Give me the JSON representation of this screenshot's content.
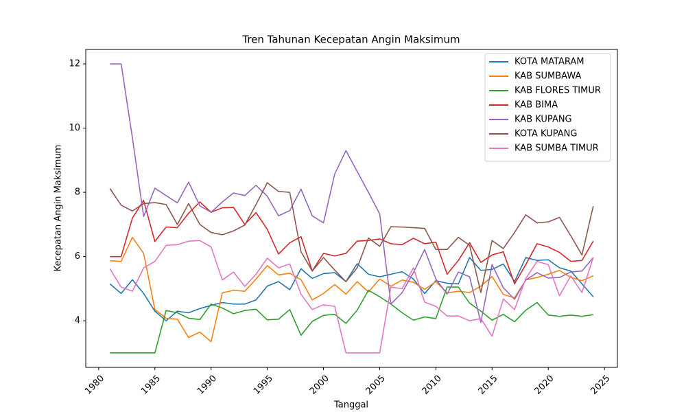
{
  "chart_data": {
    "type": "line",
    "title": "Tren Tahunan Kecepatan Angin Maksimum",
    "x_label": "Tanggal",
    "y_label": "Kecepatan Angin Maksimum",
    "x": [
      1981,
      1982,
      1983,
      1984,
      1985,
      1986,
      1987,
      1988,
      1989,
      1990,
      1991,
      1992,
      1993,
      1994,
      1995,
      1996,
      1997,
      1998,
      1999,
      2000,
      2001,
      2002,
      2003,
      2004,
      2005,
      2006,
      2007,
      2008,
      2009,
      2010,
      2011,
      2012,
      2013,
      2014,
      2015,
      2016,
      2017,
      2018,
      2019,
      2020,
      2021,
      2022,
      2023,
      2024
    ],
    "series": [
      {
        "name": "KOTA MATARAM",
        "color": "#1f77b4",
        "values": [
          5.15,
          4.85,
          5.28,
          4.85,
          4.3,
          4.0,
          4.3,
          4.25,
          4.38,
          4.48,
          4.57,
          4.52,
          4.52,
          4.65,
          5.08,
          5.22,
          4.97,
          5.62,
          5.32,
          5.47,
          5.5,
          5.22,
          5.78,
          5.45,
          5.37,
          5.45,
          5.53,
          5.3,
          4.85,
          5.25,
          5.17,
          5.15,
          5.97,
          5.57,
          5.6,
          5.77,
          5.22,
          5.97,
          5.88,
          5.9,
          5.65,
          5.55,
          5.15,
          4.75
        ]
      },
      {
        "name": "KAB SUMBAWA",
        "color": "#ff7f0e",
        "values": [
          5.87,
          5.85,
          6.6,
          6.1,
          4.35,
          4.08,
          4.05,
          3.48,
          3.65,
          3.35,
          4.87,
          4.95,
          4.92,
          5.3,
          5.72,
          5.43,
          5.48,
          5.28,
          4.65,
          4.85,
          5.13,
          4.83,
          5.22,
          4.9,
          5.3,
          5.08,
          5.27,
          5.2,
          4.98,
          5.22,
          4.87,
          4.92,
          4.88,
          5.08,
          5.38,
          4.82,
          4.72,
          5.27,
          5.35,
          5.45,
          5.57,
          5.35,
          5.25,
          5.4
        ]
      },
      {
        "name": "KAB FLORES TIMUR",
        "color": "#2ca02c",
        "values": [
          3,
          3,
          3,
          3,
          3,
          4.32,
          4.25,
          4.08,
          4.04,
          4.52,
          4.4,
          4.22,
          4.32,
          4.36,
          4.03,
          4.05,
          4.35,
          3.55,
          3.98,
          4.17,
          4.2,
          3.92,
          4.33,
          4.95,
          4.75,
          4.52,
          4.25,
          4.02,
          4.12,
          4.07,
          5.05,
          5.05,
          4.55,
          4.3,
          4.02,
          4.2,
          3.97,
          4.33,
          4.57,
          4.18,
          4.14,
          4.18,
          4.14,
          4.19
        ]
      },
      {
        "name": "KAB BIMA",
        "color": "#d62728",
        "values": [
          6,
          6,
          7.2,
          7.75,
          6.47,
          6.92,
          6.9,
          7.35,
          7.7,
          7.38,
          7.52,
          7.53,
          7.0,
          7.37,
          6.85,
          6.08,
          6.43,
          6.62,
          5.55,
          6.1,
          6.02,
          6.1,
          6.48,
          6.5,
          6.55,
          6.4,
          6.37,
          6.57,
          6.4,
          6.45,
          5.45,
          5.88,
          6.43,
          5.82,
          6.05,
          6.15,
          5.15,
          5.75,
          6.4,
          6.3,
          6.13,
          5.85,
          5.88,
          6.48
        ]
      },
      {
        "name": "KAB KUPANG",
        "color": "#9467bd",
        "values": [
          12,
          12,
          9.7,
          7.25,
          8.13,
          7.9,
          7.67,
          8.32,
          7.58,
          7.38,
          7.7,
          7.98,
          7.9,
          8.22,
          7.88,
          7.27,
          7.43,
          8.1,
          7.27,
          7.05,
          8.57,
          9.3,
          8.65,
          8.0,
          7.33,
          4.52,
          4.88,
          5.5,
          6.22,
          5.3,
          4.83,
          5.52,
          5.37,
          3.95,
          5.75,
          5.03,
          4.67,
          5.27,
          5.5,
          5.33,
          5.35,
          5.52,
          5.55,
          5.97
        ]
      },
      {
        "name": "KOTA KUPANG",
        "color": "#8c564b",
        "values": [
          8.12,
          7.6,
          7.42,
          7.65,
          7.68,
          7.62,
          7.0,
          7.65,
          7.0,
          6.75,
          6.68,
          6.8,
          6.98,
          7.62,
          8.3,
          8.03,
          8.0,
          6.15,
          5.55,
          5.97,
          5.58,
          5.22,
          5.65,
          6.58,
          6.32,
          6.93,
          6.92,
          6.9,
          6.88,
          6.22,
          6.22,
          6.6,
          6.35,
          4.88,
          6.5,
          6.25,
          6.75,
          7.3,
          7.05,
          7.08,
          7.22,
          6.65,
          6.05,
          7.57
        ]
      },
      {
        "name": "KAB SUMBA TIMUR",
        "color": "#e377c2",
        "values": [
          5.62,
          5.05,
          4.92,
          5.65,
          5.85,
          6.35,
          6.37,
          6.48,
          6.5,
          6.3,
          5.27,
          5.52,
          5.07,
          5.45,
          5.95,
          5.65,
          5.77,
          4.83,
          4.35,
          4.5,
          4.45,
          3.0,
          3.0,
          3.0,
          3.0,
          5.05,
          5.0,
          5.65,
          4.58,
          4.45,
          4.15,
          4.15,
          4.0,
          4.07,
          3.52,
          4.68,
          4.35,
          5.32,
          5.85,
          5.75,
          4.78,
          5.4,
          4.88,
          5.97
        ]
      }
    ],
    "xlim": [
      1978.85,
      2026.15
    ],
    "xticks": [
      1980,
      1985,
      1990,
      1995,
      2000,
      2005,
      2010,
      2015,
      2020,
      2025
    ],
    "ylim": [
      2.55,
      12.45
    ],
    "yticks": [
      4,
      6,
      8,
      10,
      12
    ],
    "legend": "upper right"
  }
}
